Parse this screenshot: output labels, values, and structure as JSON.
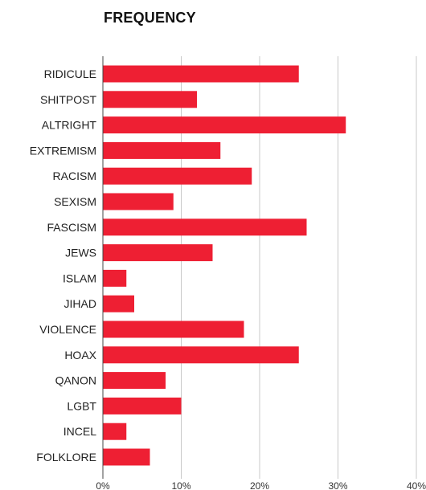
{
  "chart_data": {
    "type": "bar",
    "orientation": "horizontal",
    "title": "FREQUENCY",
    "xlabel": "",
    "ylabel": "",
    "categories": [
      "RIDICULE",
      "SHITPOST",
      "ALTRIGHT",
      "EXTREMISM",
      "RACISM",
      "SEXISM",
      "FASCISM",
      "JEWS",
      "ISLAM",
      "JIHAD",
      "VIOLENCE",
      "HOAX",
      "QANON",
      "LGBT",
      "INCEL",
      "FOLKLORE"
    ],
    "values": [
      25,
      12,
      31,
      15,
      19,
      9,
      26,
      14,
      3,
      4,
      18,
      25,
      8,
      10,
      3,
      6
    ],
    "value_unit": "percent",
    "xlim": [
      0,
      40
    ],
    "xticks": [
      "0%",
      "10%",
      "20%",
      "30%",
      "40%"
    ],
    "grid": true,
    "legend": "none",
    "bar_color": "#ee1f33",
    "grid_color": "#c8c8c8"
  }
}
